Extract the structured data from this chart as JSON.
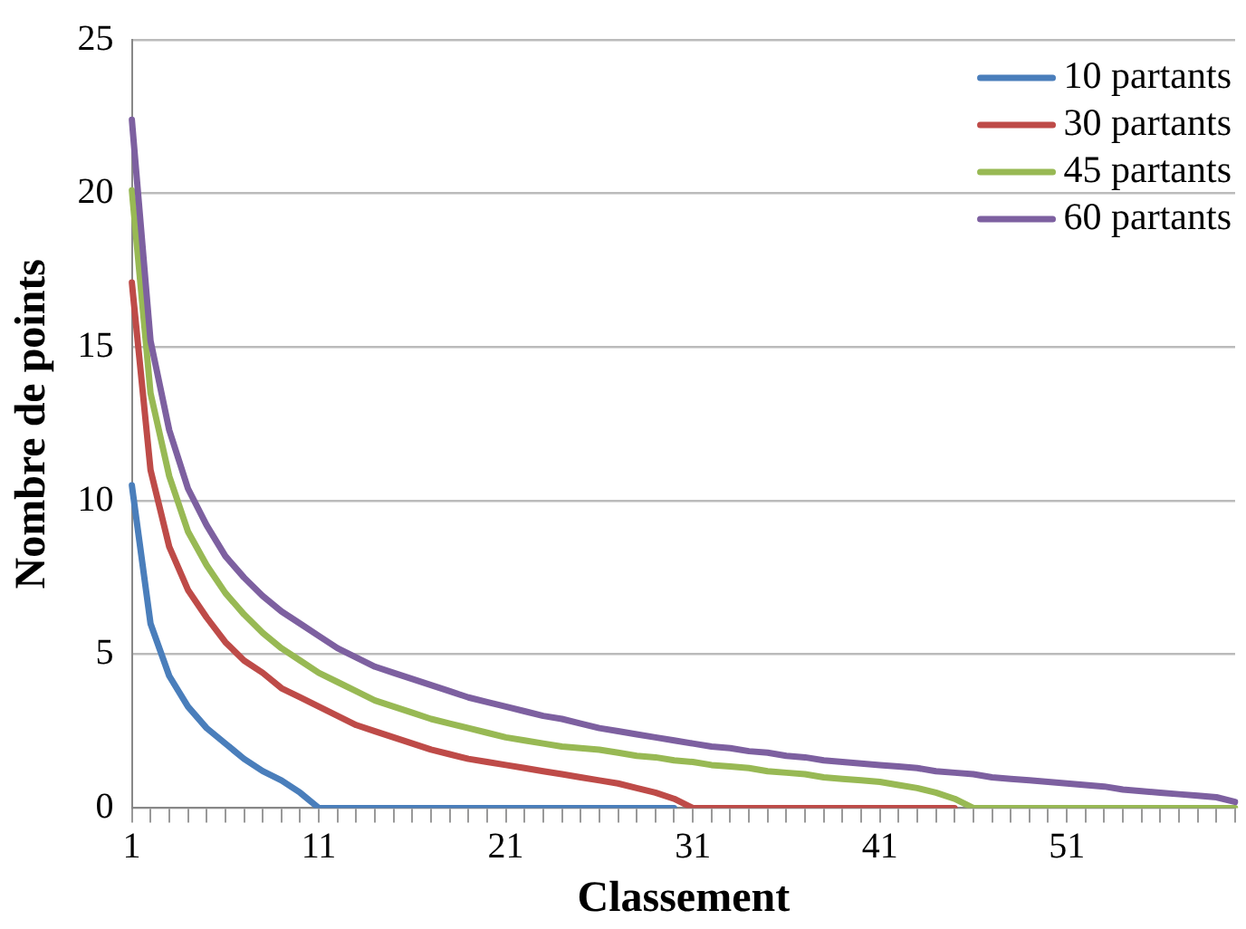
{
  "chart_data": {
    "type": "line",
    "xlabel": "Classement",
    "ylabel": "Nombre de points",
    "categories": [
      "1",
      null,
      null,
      null,
      null,
      null,
      null,
      null,
      null,
      null,
      "11",
      null,
      null,
      null,
      null,
      null,
      null,
      null,
      null,
      null,
      "21",
      null,
      null,
      null,
      null,
      null,
      null,
      null,
      null,
      null,
      "31",
      null,
      null,
      null,
      null,
      null,
      null,
      null,
      null,
      null,
      "41",
      null,
      null,
      null,
      null,
      null,
      null,
      null,
      null,
      null,
      "51",
      null,
      null,
      null,
      null,
      null,
      null,
      null,
      null,
      null
    ],
    "series": [
      {
        "name": "10 partants",
        "color": "#4a7ebb",
        "values": [
          10.5,
          6,
          4.3,
          3.3,
          2.6,
          2.1,
          1.6,
          1.2,
          0.9,
          0.5,
          0,
          0,
          0,
          0,
          0,
          0,
          0,
          0,
          0,
          0,
          0,
          0,
          0,
          0,
          0,
          0,
          0,
          0,
          0,
          0,
          null,
          null,
          null,
          null,
          null,
          null,
          null,
          null,
          null,
          null,
          null,
          null,
          null,
          null,
          null,
          null,
          null,
          null,
          null,
          null,
          null,
          null,
          null,
          null,
          null,
          null,
          null,
          null,
          null,
          null
        ]
      },
      {
        "name": "30 partants",
        "color": "#be4b48",
        "values": [
          17.1,
          11,
          8.5,
          7.1,
          6.2,
          5.4,
          4.8,
          4.4,
          3.9,
          3.6,
          3.3,
          3.0,
          2.7,
          2.5,
          2.3,
          2.1,
          1.9,
          1.75,
          1.6,
          1.5,
          1.4,
          1.3,
          1.2,
          1.1,
          1.0,
          0.9,
          0.8,
          0.65,
          0.5,
          0.3,
          0,
          0,
          0,
          0,
          0,
          0,
          0,
          0,
          0,
          0,
          0,
          0,
          0,
          0,
          0,
          null,
          null,
          null,
          null,
          null,
          null,
          null,
          null,
          null,
          null,
          null,
          null,
          null,
          null,
          null
        ]
      },
      {
        "name": "45 partants",
        "color": "#98b954",
        "values": [
          20.1,
          13.5,
          10.8,
          9,
          7.9,
          7.0,
          6.3,
          5.7,
          5.2,
          4.8,
          4.4,
          4.1,
          3.8,
          3.5,
          3.3,
          3.1,
          2.9,
          2.75,
          2.6,
          2.45,
          2.3,
          2.2,
          2.1,
          2.0,
          1.95,
          1.9,
          1.8,
          1.7,
          1.65,
          1.55,
          1.5,
          1.4,
          1.35,
          1.3,
          1.2,
          1.15,
          1.1,
          1.0,
          0.95,
          0.9,
          0.85,
          0.75,
          0.65,
          0.5,
          0.3,
          0,
          0,
          0,
          0,
          0,
          0,
          0,
          0,
          0,
          0,
          0,
          0,
          0,
          0,
          0
        ]
      },
      {
        "name": "60 partants",
        "color": "#7d60a0",
        "values": [
          22.4,
          15.2,
          12.3,
          10.4,
          9.2,
          8.2,
          7.5,
          6.9,
          6.4,
          6.0,
          5.6,
          5.2,
          4.9,
          4.6,
          4.4,
          4.2,
          4.0,
          3.8,
          3.6,
          3.45,
          3.3,
          3.15,
          3.0,
          2.9,
          2.75,
          2.6,
          2.5,
          2.4,
          2.3,
          2.2,
          2.1,
          2.0,
          1.95,
          1.85,
          1.8,
          1.7,
          1.65,
          1.55,
          1.5,
          1.45,
          1.4,
          1.35,
          1.3,
          1.2,
          1.15,
          1.1,
          1.0,
          0.95,
          0.9,
          0.85,
          0.8,
          0.75,
          0.7,
          0.6,
          0.55,
          0.5,
          0.45,
          0.4,
          0.35,
          0.2
        ]
      }
    ],
    "ylim": [
      0,
      25
    ],
    "yticks": [
      0,
      5,
      10,
      15,
      20,
      25
    ],
    "grid": "y",
    "legend": "top right",
    "marker": "none",
    "line_style": "solid"
  }
}
